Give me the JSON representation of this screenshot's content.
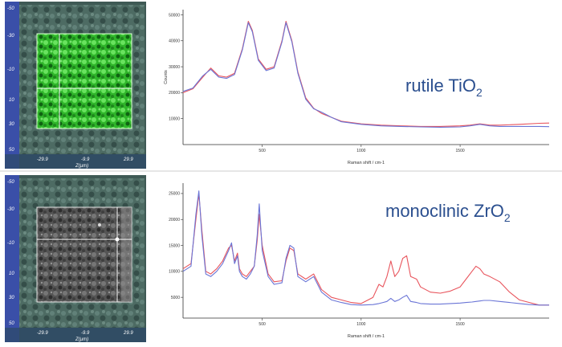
{
  "panels": [
    {
      "map": {
        "colorscheme": "green",
        "y_ticks": [
          "-50",
          "-30",
          "-10",
          "10",
          "30",
          "50"
        ],
        "x_ticks": [
          "-29.9",
          "-9.9",
          "29.9"
        ],
        "x_label": "Z(µm)"
      }
    },
    {
      "map": {
        "colorscheme": "gray",
        "y_ticks": [
          "-50",
          "-30",
          "-10",
          "10",
          "30",
          "50"
        ],
        "x_ticks": [
          "-29.9",
          "-9.9",
          "29.9"
        ],
        "x_label": "Z(µm)"
      }
    }
  ],
  "chart_data": [
    {
      "type": "line",
      "title_main": "rutile TiO",
      "title_sub": "2",
      "xlabel": "Raman shift / cm-1",
      "ylabel": "Counts",
      "xlim": [
        100,
        1950
      ],
      "ylim": [
        0,
        52000
      ],
      "xticks": [
        500,
        1000,
        1500
      ],
      "yticks": [
        10000,
        20000,
        30000,
        40000,
        50000
      ],
      "series": [
        {
          "color": "#e8545c",
          "x": [
            100,
            150,
            200,
            240,
            280,
            320,
            360,
            400,
            430,
            450,
            480,
            520,
            560,
            600,
            620,
            650,
            680,
            720,
            760,
            800,
            850,
            900,
            1000,
            1100,
            1200,
            1300,
            1400,
            1500,
            1550,
            1600,
            1650,
            1700,
            1800,
            1900,
            1950
          ],
          "y": [
            20000,
            21500,
            26000,
            29500,
            26500,
            26000,
            27500,
            37000,
            47500,
            44000,
            33000,
            29000,
            30000,
            40000,
            47500,
            40000,
            28000,
            18000,
            14000,
            12000,
            10500,
            9000,
            8000,
            7500,
            7200,
            7000,
            7000,
            7200,
            7500,
            8000,
            7500,
            7500,
            7800,
            8200,
            8300
          ]
        },
        {
          "color": "#6a75d6",
          "x": [
            100,
            150,
            200,
            240,
            280,
            320,
            360,
            400,
            430,
            450,
            480,
            520,
            560,
            600,
            620,
            650,
            680,
            720,
            760,
            800,
            850,
            900,
            1000,
            1100,
            1200,
            1300,
            1400,
            1500,
            1550,
            1600,
            1650,
            1700,
            1800,
            1900,
            1950
          ],
          "y": [
            20500,
            21800,
            26500,
            29000,
            26000,
            25500,
            27000,
            36500,
            47000,
            43500,
            32500,
            28500,
            29500,
            39500,
            47000,
            39500,
            27500,
            17500,
            13800,
            12500,
            10500,
            8800,
            7800,
            7200,
            7000,
            6800,
            6700,
            6800,
            7200,
            7800,
            7200,
            7000,
            7000,
            7000,
            6900
          ]
        }
      ]
    },
    {
      "type": "line",
      "title_main": "monoclinic ZrO",
      "title_sub": "2",
      "xlabel": "Raman shift / cm-1",
      "ylabel": "",
      "xlim": [
        100,
        1950
      ],
      "ylim": [
        1000,
        27000
      ],
      "xticks": [
        500,
        1000,
        1500
      ],
      "yticks": [
        5000,
        10000,
        15000,
        20000,
        25000
      ],
      "series": [
        {
          "color": "#e8545c",
          "x": [
            100,
            140,
            165,
            180,
            195,
            215,
            240,
            270,
            300,
            330,
            345,
            360,
            375,
            385,
            400,
            420,
            440,
            460,
            475,
            485,
            500,
            530,
            560,
            600,
            620,
            640,
            660,
            680,
            720,
            760,
            800,
            850,
            900,
            950,
            1000,
            1060,
            1090,
            1110,
            1130,
            1150,
            1170,
            1190,
            1210,
            1230,
            1250,
            1280,
            1300,
            1350,
            1400,
            1450,
            1500,
            1530,
            1560,
            1580,
            1600,
            1620,
            1650,
            1700,
            1750,
            1800,
            1850,
            1900,
            1950
          ],
          "y": [
            10500,
            11500,
            20000,
            25000,
            18000,
            10000,
            9500,
            10500,
            12000,
            14500,
            15000,
            12000,
            13500,
            10500,
            9500,
            9000,
            10000,
            11000,
            16000,
            21000,
            15000,
            9500,
            8000,
            8200,
            12000,
            14500,
            14000,
            9500,
            8500,
            9500,
            6500,
            5000,
            4500,
            4000,
            3800,
            5000,
            7500,
            7000,
            9000,
            12000,
            9000,
            10000,
            12500,
            13000,
            9000,
            8500,
            7000,
            6000,
            5800,
            6200,
            7000,
            8500,
            10000,
            11000,
            10500,
            9500,
            9000,
            8000,
            6000,
            4500,
            4000,
            3500,
            3500
          ]
        },
        {
          "color": "#6a75d6",
          "x": [
            100,
            140,
            165,
            180,
            195,
            215,
            240,
            270,
            300,
            330,
            345,
            360,
            375,
            385,
            400,
            420,
            440,
            460,
            475,
            485,
            500,
            530,
            560,
            600,
            620,
            640,
            660,
            680,
            720,
            760,
            800,
            850,
            900,
            950,
            1000,
            1060,
            1090,
            1110,
            1130,
            1150,
            1170,
            1190,
            1210,
            1230,
            1250,
            1280,
            1300,
            1350,
            1400,
            1450,
            1500,
            1530,
            1560,
            1580,
            1600,
            1620,
            1650,
            1700,
            1750,
            1800,
            1850,
            1900,
            1950
          ],
          "y": [
            10000,
            11000,
            21000,
            25500,
            17000,
            9500,
            9000,
            10000,
            11500,
            14000,
            15500,
            11500,
            13000,
            10000,
            9000,
            8500,
            9500,
            11000,
            17000,
            23000,
            14000,
            9000,
            7500,
            7800,
            12500,
            15000,
            14500,
            9000,
            8000,
            9000,
            6000,
            4500,
            4000,
            3600,
            3500,
            3600,
            3800,
            4000,
            4200,
            4800,
            4200,
            4500,
            5000,
            5400,
            4200,
            4000,
            3800,
            3700,
            3700,
            3800,
            3900,
            4000,
            4100,
            4200,
            4300,
            4400,
            4400,
            4200,
            4000,
            3800,
            3600,
            3500,
            3500
          ]
        }
      ]
    }
  ]
}
